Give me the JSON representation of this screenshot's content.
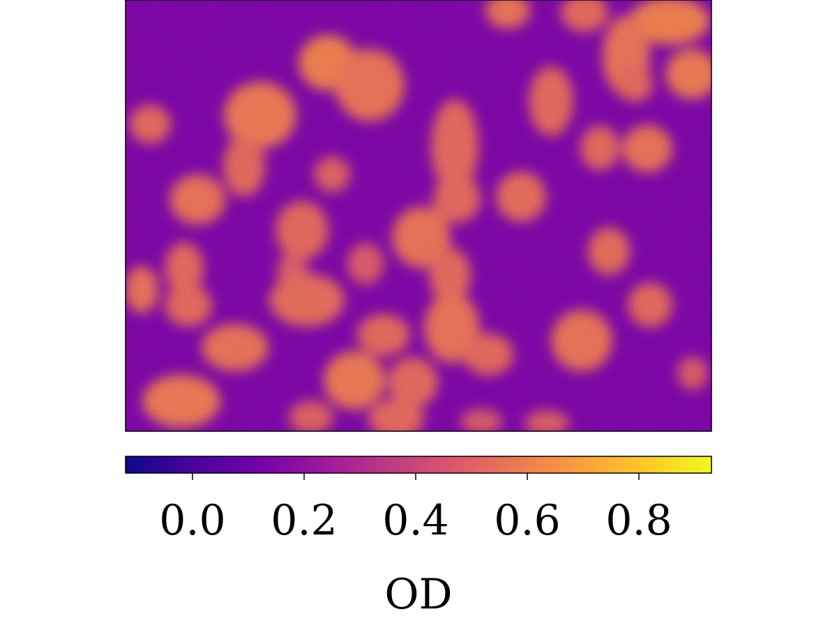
{
  "chart_data": {
    "type": "heatmap",
    "colormap": "plasma",
    "colormap_stops": [
      "#0d0887",
      "#46039f",
      "#7201a8",
      "#9c179e",
      "#bd3786",
      "#d8576b",
      "#ed7953",
      "#fb9f3a",
      "#fdca26",
      "#f0f921"
    ],
    "value_range": [
      -0.12,
      0.93
    ],
    "background_od": 0.15,
    "grid": false,
    "axes_ticks_visible": false,
    "colorbar": {
      "orientation": "horizontal",
      "position": "bottom",
      "label": "OD",
      "ticks": [
        0.0,
        0.2,
        0.4,
        0.6,
        0.8
      ],
      "tick_labels": [
        "0.0",
        "0.2",
        "0.4",
        "0.6",
        "0.8"
      ]
    },
    "image_content": "clustered blobs of elevated OD (about 0.45–0.7) on a uniform background (about 0.15)"
  }
}
